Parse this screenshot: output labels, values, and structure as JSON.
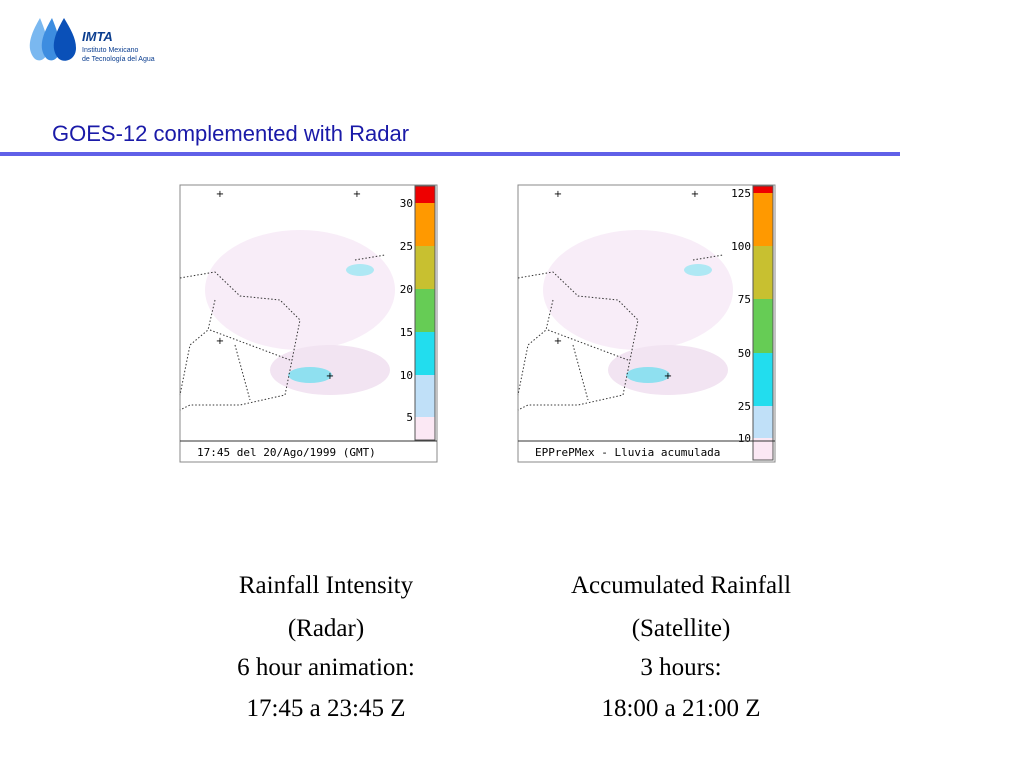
{
  "logo": {
    "name": "IMTA",
    "line1": "Instituto Mexicano",
    "line2": "de Tecnología del Agua"
  },
  "title": "GOES-12 complemented with Radar",
  "maps": [
    {
      "scale_labels": [
        "30",
        "25",
        "20",
        "15",
        "10",
        "5"
      ],
      "footer": "17:45 del 20/Ago/1999 (GMT)",
      "caption": [
        "Rainfall Intensity",
        "(Radar)",
        "6 hour animation:",
        "17:45 a 23:45 Z"
      ]
    },
    {
      "scale_labels": [
        "125",
        "100",
        "75",
        "50",
        "25",
        "10"
      ],
      "footer": "EPPrePMex - Lluvia acumulada",
      "caption": [
        "Accumulated Rainfall",
        "(Satellite)",
        "3 hours:",
        "18:00 a 21:00 Z"
      ]
    }
  ]
}
